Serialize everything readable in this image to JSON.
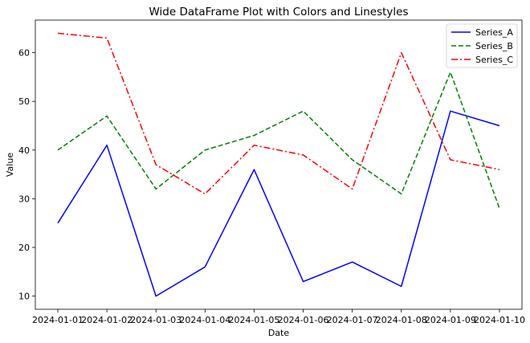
{
  "chart_data": {
    "type": "line",
    "title": "Wide DataFrame Plot with Colors and Linestyles",
    "xlabel": "Date",
    "ylabel": "Value",
    "categories": [
      "2024-01-01",
      "2024-01-02",
      "2024-01-03",
      "2024-01-04",
      "2024-01-05",
      "2024-01-06",
      "2024-01-07",
      "2024-01-08",
      "2024-01-09",
      "2024-01-10"
    ],
    "y_ticks": [
      10,
      20,
      30,
      40,
      50,
      60
    ],
    "ylim": [
      7.3,
      66.7
    ],
    "grid": false,
    "legend_position": "top-right",
    "series": [
      {
        "name": "Series_A",
        "color": "#0000ff",
        "linestyle": "solid",
        "values": [
          25,
          41,
          10,
          16,
          36,
          13,
          17,
          12,
          48,
          45
        ]
      },
      {
        "name": "Series_B",
        "color": "#008000",
        "linestyle": "dashed",
        "values": [
          40,
          47,
          32,
          40,
          43,
          48,
          38,
          31,
          56,
          28
        ]
      },
      {
        "name": "Series_C",
        "color": "#ff0000",
        "linestyle": "dashdot",
        "values": [
          64,
          63,
          37,
          31,
          41,
          39,
          32,
          60,
          38,
          36
        ]
      }
    ]
  }
}
